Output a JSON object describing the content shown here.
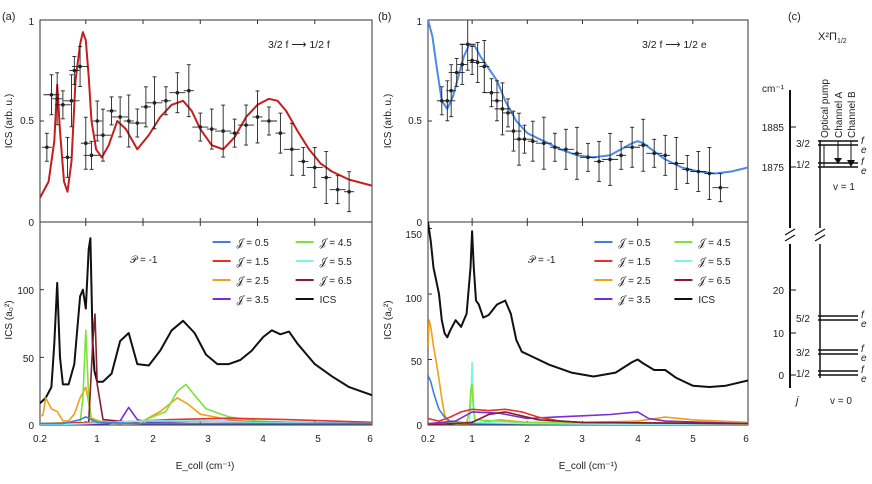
{
  "panel_labels": {
    "a": "(a)",
    "b": "(b)",
    "c": "(c)"
  },
  "colors": {
    "j05": "#3f7fe0",
    "j15": "#e8312a",
    "j25": "#f0a019",
    "j35": "#7a2fd1",
    "j45": "#7be33a",
    "j55": "#7ff2ee",
    "j65": "#8e1b2a",
    "ics": "#111111",
    "fit_a": "#c41e1e",
    "fit_b": "#4a8be6",
    "exp": "#222222"
  },
  "chart_data": [
    {
      "type": "line",
      "panel": "a-top",
      "annotation": "3/2 f ⟶ 1/2 f",
      "ylabel": "ICS (arb. u.)",
      "xlim": [
        0.2,
        6
      ],
      "ylim": [
        0,
        1
      ],
      "yticks": [
        "0",
        "0.5",
        "1"
      ],
      "series": [
        {
          "key": "fit",
          "x": [
            0.2,
            0.35,
            0.45,
            0.5,
            0.55,
            0.62,
            0.68,
            0.75,
            0.82,
            0.9,
            0.95,
            1.0,
            1.05,
            1.1,
            1.18,
            1.28,
            1.4,
            1.55,
            1.7,
            1.9,
            2.1,
            2.3,
            2.5,
            2.7,
            2.85,
            3.0,
            3.2,
            3.4,
            3.6,
            3.8,
            4.0,
            4.2,
            4.35,
            4.5,
            4.7,
            4.9,
            5.1,
            5.3,
            5.6,
            6.0
          ],
          "y": [
            0.12,
            0.2,
            0.4,
            0.68,
            0.45,
            0.2,
            0.15,
            0.3,
            0.7,
            0.88,
            0.94,
            0.9,
            0.72,
            0.5,
            0.36,
            0.32,
            0.38,
            0.5,
            0.46,
            0.36,
            0.43,
            0.52,
            0.58,
            0.6,
            0.55,
            0.46,
            0.38,
            0.36,
            0.42,
            0.52,
            0.58,
            0.61,
            0.6,
            0.55,
            0.45,
            0.36,
            0.29,
            0.25,
            0.21,
            0.18
          ]
        },
        {
          "key": "exp",
          "x": [
            0.32,
            0.4,
            0.5,
            0.6,
            0.68,
            0.75,
            0.8,
            0.9,
            1.0,
            1.1,
            1.2,
            1.3,
            1.45,
            1.6,
            1.75,
            1.9,
            2.05,
            2.2,
            2.4,
            2.6,
            2.8,
            3.0,
            3.2,
            3.4,
            3.6,
            3.8,
            4.0,
            4.2,
            4.4,
            4.6,
            4.8,
            5.0,
            5.2,
            5.4,
            5.6
          ],
          "y": [
            0.37,
            0.63,
            0.61,
            0.58,
            0.32,
            0.6,
            0.75,
            0.77,
            0.39,
            0.33,
            0.5,
            0.43,
            0.55,
            0.52,
            0.5,
            0.49,
            0.57,
            0.59,
            0.6,
            0.64,
            0.65,
            0.47,
            0.46,
            0.45,
            0.44,
            0.48,
            0.52,
            0.5,
            0.44,
            0.36,
            0.3,
            0.27,
            0.22,
            0.16,
            0.15
          ]
        }
      ]
    },
    {
      "type": "line",
      "panel": "a-bottom",
      "annotation": "𝒫 = -1",
      "xlabel": "E_coll (cm⁻¹)",
      "ylabel": "ICS (a₀²)",
      "xlim": [
        0.2,
        6
      ],
      "ylim": [
        0,
        150
      ],
      "xticks": [
        "0.2",
        "1",
        "2",
        "3",
        "4",
        "5",
        "6"
      ],
      "yticks": [
        "0",
        "50",
        "100"
      ],
      "legend": [
        "𝒥 = 0.5",
        "𝒥 = 1.5",
        "𝒥 = 2.5",
        "𝒥 = 3.5",
        "𝒥 = 4.5",
        "𝒥 = 5.5",
        "𝒥 = 6.5",
        "ICS"
      ],
      "series": [
        {
          "key": "ics",
          "x": [
            0.2,
            0.3,
            0.4,
            0.45,
            0.5,
            0.55,
            0.6,
            0.7,
            0.8,
            0.9,
            0.95,
            1.0,
            1.05,
            1.08,
            1.12,
            1.15,
            1.2,
            1.3,
            1.45,
            1.6,
            1.75,
            1.9,
            2.1,
            2.3,
            2.5,
            2.7,
            2.9,
            3.1,
            3.3,
            3.5,
            3.7,
            3.9,
            4.1,
            4.25,
            4.4,
            4.55,
            4.7,
            5.0,
            5.3,
            5.6,
            6.0
          ],
          "y": [
            16,
            20,
            28,
            60,
            105,
            50,
            30,
            30,
            45,
            95,
            100,
            86,
            130,
            138,
            60,
            40,
            32,
            32,
            38,
            62,
            68,
            45,
            44,
            55,
            70,
            77,
            68,
            52,
            45,
            45,
            48,
            55,
            65,
            70,
            67,
            69,
            60,
            45,
            36,
            28,
            22
          ]
        },
        {
          "key": "j25",
          "x": [
            0.2,
            0.25,
            0.3,
            0.4,
            0.5,
            0.6,
            0.7,
            0.8,
            0.9,
            1.0,
            1.1,
            1.3,
            1.6,
            2.0,
            2.3,
            2.6,
            2.8,
            3.0,
            3.5,
            4.0,
            5.0,
            6.0
          ],
          "y": [
            7,
            7,
            20,
            12,
            10,
            3,
            3,
            8,
            20,
            28,
            5,
            2,
            1,
            3,
            10,
            20,
            15,
            8,
            4,
            2,
            1,
            1
          ]
        },
        {
          "key": "j45",
          "x": [
            0.2,
            0.9,
            0.95,
            1.0,
            1.05,
            1.1,
            1.5,
            2.0,
            2.4,
            2.6,
            2.75,
            2.9,
            3.1,
            3.5,
            4.0,
            5.0,
            6.0
          ],
          "y": [
            1,
            2,
            20,
            70,
            20,
            3,
            2,
            3,
            10,
            25,
            30,
            22,
            12,
            6,
            3,
            1,
            1
          ]
        },
        {
          "key": "j65",
          "x": [
            0.2,
            1.05,
            1.12,
            1.16,
            1.2,
            1.3,
            2.0,
            3.0,
            6.0
          ],
          "y": [
            0,
            2,
            60,
            82,
            30,
            4,
            1,
            1,
            1
          ]
        },
        {
          "key": "j35",
          "x": [
            0.2,
            1.4,
            1.6,
            1.75,
            1.9,
            2.1,
            3.0,
            6.0
          ],
          "y": [
            0,
            1,
            3,
            13,
            4,
            2,
            3,
            1
          ]
        },
        {
          "key": "j15",
          "x": [
            0.2,
            1.5,
            2.5,
            3.5,
            4.5,
            6.0
          ],
          "y": [
            1,
            2,
            4,
            5,
            4,
            2
          ]
        },
        {
          "key": "j55",
          "x": [
            0.2,
            1.0,
            2.0,
            3.0,
            4.0,
            6.0
          ],
          "y": [
            0,
            1,
            3,
            3,
            2,
            1
          ]
        },
        {
          "key": "j05",
          "x": [
            0.2,
            0.6,
            0.9,
            1.0,
            1.2,
            2.0,
            4.0,
            6.0
          ],
          "y": [
            1,
            1,
            4,
            6,
            2,
            1,
            1,
            1
          ]
        }
      ]
    },
    {
      "type": "line",
      "panel": "b-top",
      "annotation": "3/2 f ⟶ 1/2 e",
      "ylabel": "ICS (arb. u.)",
      "xlim": [
        0.2,
        6
      ],
      "ylim": [
        0,
        1
      ],
      "yticks": [
        "0",
        "0.5",
        "1"
      ],
      "series": [
        {
          "key": "fit",
          "x": [
            0.2,
            0.28,
            0.35,
            0.45,
            0.55,
            0.65,
            0.75,
            0.85,
            0.95,
            1.05,
            1.15,
            1.3,
            1.45,
            1.6,
            1.8,
            2.0,
            2.3,
            2.6,
            2.9,
            3.2,
            3.5,
            3.7,
            3.9,
            4.0,
            4.1,
            4.3,
            4.5,
            4.8,
            5.1,
            5.4,
            5.7,
            6.0
          ],
          "y": [
            1.0,
            0.92,
            0.78,
            0.6,
            0.56,
            0.62,
            0.72,
            0.82,
            0.88,
            0.87,
            0.82,
            0.76,
            0.7,
            0.6,
            0.5,
            0.44,
            0.4,
            0.36,
            0.33,
            0.32,
            0.33,
            0.36,
            0.39,
            0.4,
            0.39,
            0.35,
            0.31,
            0.27,
            0.25,
            0.24,
            0.25,
            0.27
          ]
        },
        {
          "key": "exp",
          "x": [
            0.45,
            0.55,
            0.62,
            0.72,
            0.82,
            0.92,
            1.0,
            1.1,
            1.22,
            1.35,
            1.45,
            1.55,
            1.65,
            1.75,
            1.85,
            1.95,
            2.1,
            2.3,
            2.5,
            2.7,
            2.9,
            3.1,
            3.3,
            3.5,
            3.7,
            3.9,
            4.1,
            4.3,
            4.5,
            4.7,
            4.9,
            5.1,
            5.3,
            5.5
          ],
          "y": [
            0.6,
            0.6,
            0.65,
            0.74,
            0.78,
            0.88,
            0.8,
            0.79,
            0.77,
            0.64,
            0.6,
            0.56,
            0.54,
            0.45,
            0.41,
            0.41,
            0.4,
            0.39,
            0.37,
            0.36,
            0.34,
            0.32,
            0.3,
            0.31,
            0.33,
            0.37,
            0.38,
            0.34,
            0.33,
            0.29,
            0.26,
            0.25,
            0.24,
            0.17
          ]
        }
      ]
    },
    {
      "type": "line",
      "panel": "b-bottom",
      "annotation": "𝒫 = -1",
      "xlabel": "E_coll (cm⁻¹)",
      "ylabel": "ICS (a₀²)",
      "xlim": [
        0.2,
        6
      ],
      "ylim": [
        0,
        155
      ],
      "xticks": [
        "0.2",
        "1",
        "2",
        "3",
        "4",
        "5",
        "6"
      ],
      "yticks": [
        "0",
        "50",
        "100",
        "150"
      ],
      "legend": [
        "𝒥 = 0.5",
        "𝒥 = 1.5",
        "𝒥 = 2.5",
        "𝒥 = 3.5",
        "𝒥 = 4.5",
        "𝒥 = 5.5",
        "𝒥 = 6.5",
        "ICS"
      ],
      "series": [
        {
          "key": "ics",
          "x": [
            0.2,
            0.25,
            0.3,
            0.35,
            0.4,
            0.45,
            0.5,
            0.55,
            0.6,
            0.7,
            0.8,
            0.9,
            0.97,
            1.0,
            1.03,
            1.07,
            1.12,
            1.2,
            1.3,
            1.45,
            1.6,
            1.7,
            1.8,
            1.9,
            2.1,
            2.4,
            2.8,
            3.2,
            3.6,
            3.9,
            4.0,
            4.1,
            4.3,
            4.5,
            4.7,
            5.0,
            5.3,
            5.6,
            6.0
          ],
          "y": [
            155,
            140,
            120,
            110,
            100,
            80,
            70,
            67,
            72,
            80,
            75,
            85,
            120,
            148,
            120,
            95,
            92,
            82,
            84,
            92,
            95,
            85,
            65,
            56,
            52,
            46,
            40,
            37,
            40,
            48,
            50,
            47,
            42,
            42,
            36,
            30,
            29,
            30,
            34
          ]
        },
        {
          "key": "j25",
          "x": [
            0.2,
            0.22,
            0.25,
            0.3,
            0.35,
            0.4,
            0.45,
            0.5,
            0.55,
            0.6,
            0.8,
            1.0,
            1.5,
            2.0,
            3.0,
            4.0,
            4.5,
            5.0,
            6.0
          ],
          "y": [
            60,
            80,
            75,
            60,
            48,
            35,
            20,
            8,
            3,
            2,
            1,
            1,
            4,
            2,
            2,
            3,
            6,
            4,
            2
          ]
        },
        {
          "key": "j05",
          "x": [
            0.2,
            0.25,
            0.3,
            0.35,
            0.4,
            0.5,
            0.6,
            0.8,
            1.0,
            6.0
          ],
          "y": [
            38,
            33,
            25,
            18,
            12,
            6,
            3,
            2,
            1,
            1
          ]
        },
        {
          "key": "j55",
          "x": [
            0.2,
            0.95,
            0.98,
            1.0,
            1.02,
            1.05,
            2.0,
            6.0
          ],
          "y": [
            0,
            2,
            20,
            48,
            20,
            2,
            1,
            0
          ]
        },
        {
          "key": "j45",
          "x": [
            0.2,
            0.9,
            0.95,
            0.98,
            1.0,
            1.02,
            1.05,
            2.0,
            6.0
          ],
          "y": [
            1,
            2,
            10,
            28,
            31,
            15,
            4,
            2,
            1
          ]
        },
        {
          "key": "j35",
          "x": [
            0.2,
            0.7,
            1.0,
            1.5,
            2.0,
            2.5,
            3.0,
            3.5,
            4.0,
            4.2,
            4.5,
            6.0
          ],
          "y": [
            1,
            3,
            10,
            9,
            5,
            6,
            7,
            8,
            10,
            5,
            3,
            1
          ]
        },
        {
          "key": "j15",
          "x": [
            0.2,
            0.4,
            0.6,
            0.8,
            1.0,
            1.3,
            1.6,
            1.9,
            2.2,
            2.6,
            3.0,
            6.0
          ],
          "y": [
            5,
            3,
            6,
            10,
            12,
            11,
            12,
            10,
            6,
            3,
            2,
            1
          ]
        },
        {
          "key": "j65",
          "x": [
            0.2,
            1.0,
            1.3,
            1.6,
            1.8,
            2.2,
            3.0,
            6.0
          ],
          "y": [
            0,
            2,
            8,
            10,
            8,
            4,
            2,
            1
          ]
        }
      ]
    }
  ],
  "energy_diagram": {
    "title": "X²Π",
    "title_sub": "1/2",
    "unit": "cm⁻¹",
    "axis_ticks": [
      {
        "value": "1885"
      },
      {
        "value": "1875"
      },
      {
        "value": "20"
      },
      {
        "value": "10"
      },
      {
        "value": "0"
      }
    ],
    "upper_labels": [
      "3/2",
      "1/2"
    ],
    "lower_labels": [
      "5/2",
      "3/2",
      "1/2"
    ],
    "parity_f": "f",
    "parity_e": "e",
    "channel_labels": [
      "Optical pump",
      "Channel A",
      "Channel B"
    ],
    "v1": "v = 1",
    "v0": "v = 0",
    "j_label": "j"
  }
}
